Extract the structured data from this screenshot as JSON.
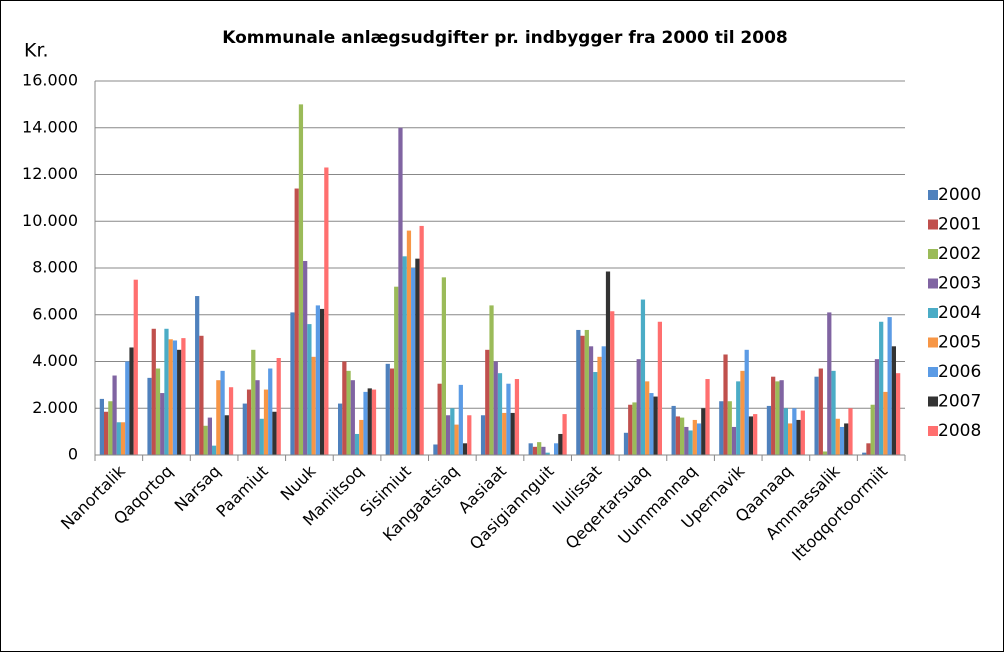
{
  "chart_data": {
    "type": "bar",
    "title": "Kommunale anlægsudgifter pr. indbygger fra 2000 til 2008",
    "y_label": "Kr.",
    "categories": [
      "Nanortalik",
      "Qaqortoq",
      "Narsaq",
      "Paamiut",
      "Nuuk",
      "Maniitsoq",
      "Sisimiut",
      "Kangaatsiaq",
      "Aasiaat",
      "Qasigiannguit",
      "Ilulissat",
      "Qeqertarsuaq",
      "Uummannaq",
      "Upernavik",
      "Qaanaaq",
      "Ammassalik",
      "Ittoqqortoormiit"
    ],
    "series": [
      {
        "name": "2000",
        "color": "#4f81bd",
        "values": [
          2400,
          3300,
          6800,
          2200,
          6100,
          2200,
          3900,
          450,
          1700,
          500,
          5350,
          950,
          2100,
          2300,
          2100,
          3350,
          100
        ]
      },
      {
        "name": "2001",
        "color": "#c0504d",
        "values": [
          1850,
          5400,
          5100,
          2800,
          11400,
          4000,
          3700,
          3050,
          4500,
          350,
          5100,
          2150,
          1650,
          4300,
          3350,
          3700,
          500
        ]
      },
      {
        "name": "2002",
        "color": "#9bbb59",
        "values": [
          2300,
          3700,
          1250,
          4500,
          15000,
          3600,
          7200,
          7600,
          6400,
          550,
          5350,
          2250,
          1600,
          2300,
          3150,
          150,
          2150
        ]
      },
      {
        "name": "2003",
        "color": "#8064a2",
        "values": [
          3400,
          2650,
          1600,
          3200,
          8300,
          3200,
          14000,
          1700,
          4000,
          350,
          4650,
          4100,
          1200,
          1200,
          3200,
          6100,
          4100
        ]
      },
      {
        "name": "2004",
        "color": "#4bacc6",
        "values": [
          1400,
          5400,
          400,
          1550,
          5600,
          900,
          8500,
          2000,
          3500,
          100,
          3550,
          6650,
          1050,
          3150,
          2000,
          3600,
          5700
        ]
      },
      {
        "name": "2005",
        "color": "#f79646",
        "values": [
          1400,
          4950,
          3200,
          2800,
          4200,
          1500,
          9600,
          1300,
          1800,
          0,
          4200,
          3150,
          1500,
          3600,
          1350,
          1550,
          2700
        ]
      },
      {
        "name": "2006",
        "color": "#5b9be5",
        "values": [
          4000,
          4900,
          3600,
          3700,
          6400,
          2700,
          8000,
          3000,
          3050,
          500,
          4650,
          2650,
          1350,
          4500,
          2000,
          1200,
          5900
        ]
      },
      {
        "name": "2007",
        "color": "#333333",
        "values": [
          4600,
          4500,
          1700,
          1850,
          6250,
          2850,
          8400,
          500,
          1800,
          900,
          7850,
          2500,
          2000,
          1650,
          1500,
          1350,
          4650
        ]
      },
      {
        "name": "2008",
        "color": "#ff6f6f",
        "values": [
          7500,
          5000,
          2900,
          4150,
          12300,
          2800,
          9800,
          1700,
          3250,
          1750,
          6150,
          5700,
          3250,
          1750,
          1900,
          2000,
          3500
        ]
      }
    ],
    "ylim": [
      0,
      16000
    ],
    "yticks": [
      0,
      {
        "value": 2000,
        "label": "2.000"
      },
      {
        "value": 4000,
        "label": "4.000"
      },
      {
        "value": 6000,
        "label": "6.000"
      },
      {
        "value": 8000,
        "label": "8.000"
      },
      {
        "value": 10000,
        "label": "10.000"
      },
      {
        "value": 12000,
        "label": "12.000"
      },
      {
        "value": 14000,
        "label": "14.000"
      },
      {
        "value": 16000,
        "label": "16.000"
      }
    ],
    "grid": true,
    "legend": "right"
  }
}
